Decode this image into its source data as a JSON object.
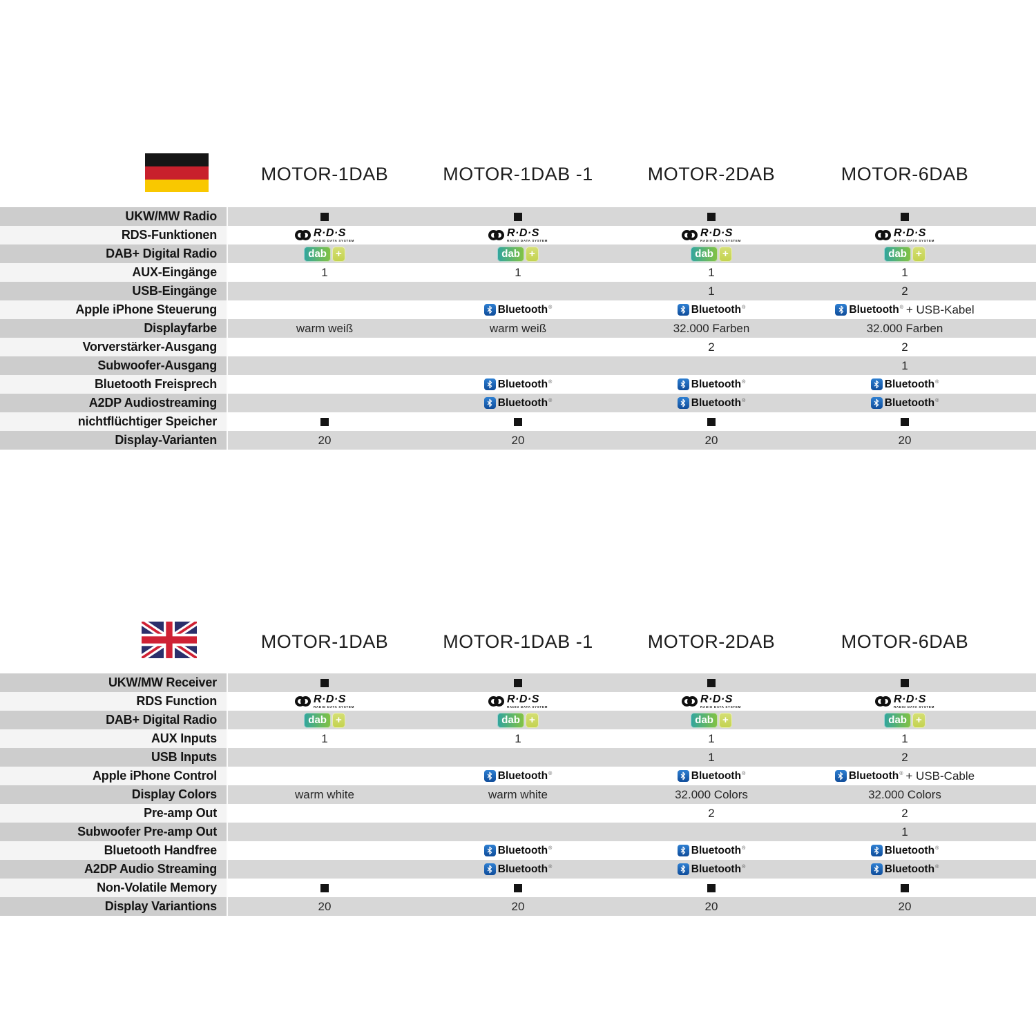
{
  "colors": {
    "row_stripe": "#d7d7d7",
    "bluetooth_blue_top": "#2e7fd2",
    "bluetooth_blue_bottom": "#0f4c9a",
    "dab_teal": "#31a49f",
    "dab_green": "#85c341",
    "dab_plus_bg": "#c3d24e",
    "marker_black": "#141414",
    "flag_de_black": "#161616",
    "flag_de_red": "#c8202c",
    "flag_de_gold": "#f9c800",
    "flag_uk_blue": "#2b2f6b",
    "flag_uk_red": "#cf2134"
  },
  "logos": {
    "rds": {
      "main": "R·D·S",
      "sub": "RADIO DATA SYSTEM"
    },
    "dab": {
      "text": "dab",
      "plus": "+"
    },
    "bluetooth": {
      "text": "Bluetooth",
      "reg": "®"
    }
  },
  "sections": [
    {
      "language": "german",
      "flag": "germany",
      "models": [
        "MOTOR-1DAB",
        "MOTOR-1DAB -1",
        "MOTOR-2DAB",
        "MOTOR-6DAB"
      ],
      "rows": [
        {
          "label": "UKW/MW Radio",
          "values": [
            {
              "type": "square"
            },
            {
              "type": "square"
            },
            {
              "type": "square"
            },
            {
              "type": "square"
            }
          ]
        },
        {
          "label": "RDS-Funktionen",
          "values": [
            {
              "type": "rds"
            },
            {
              "type": "rds"
            },
            {
              "type": "rds"
            },
            {
              "type": "rds"
            }
          ]
        },
        {
          "label": "DAB+ Digital Radio",
          "values": [
            {
              "type": "dab"
            },
            {
              "type": "dab"
            },
            {
              "type": "dab"
            },
            {
              "type": "dab"
            }
          ]
        },
        {
          "label": "AUX-Eingänge",
          "values": [
            {
              "type": "text",
              "text": "1"
            },
            {
              "type": "text",
              "text": "1"
            },
            {
              "type": "text",
              "text": "1"
            },
            {
              "type": "text",
              "text": "1"
            }
          ]
        },
        {
          "label": "USB-Eingänge",
          "values": [
            {
              "type": "empty"
            },
            {
              "type": "empty"
            },
            {
              "type": "text",
              "text": "1"
            },
            {
              "type": "text",
              "text": "2"
            }
          ]
        },
        {
          "label": "Apple iPhone Steuerung",
          "values": [
            {
              "type": "empty"
            },
            {
              "type": "bluetooth"
            },
            {
              "type": "bluetooth"
            },
            {
              "type": "bluetooth",
              "suffix": " + USB-Kabel"
            }
          ]
        },
        {
          "label": "Displayfarbe",
          "values": [
            {
              "type": "text",
              "text": "warm weiß"
            },
            {
              "type": "text",
              "text": "warm weiß"
            },
            {
              "type": "text",
              "text": "32.000 Farben"
            },
            {
              "type": "text",
              "text": "32.000 Farben"
            }
          ]
        },
        {
          "label": "Vorverstärker-Ausgang",
          "values": [
            {
              "type": "empty"
            },
            {
              "type": "empty"
            },
            {
              "type": "text",
              "text": "2"
            },
            {
              "type": "text",
              "text": "2"
            }
          ]
        },
        {
          "label": "Subwoofer-Ausgang",
          "values": [
            {
              "type": "empty"
            },
            {
              "type": "empty"
            },
            {
              "type": "empty"
            },
            {
              "type": "text",
              "text": "1"
            }
          ]
        },
        {
          "label": "Bluetooth Freisprech",
          "values": [
            {
              "type": "empty"
            },
            {
              "type": "bluetooth"
            },
            {
              "type": "bluetooth"
            },
            {
              "type": "bluetooth"
            }
          ]
        },
        {
          "label": "A2DP Audiostreaming",
          "values": [
            {
              "type": "empty"
            },
            {
              "type": "bluetooth"
            },
            {
              "type": "bluetooth"
            },
            {
              "type": "bluetooth"
            }
          ]
        },
        {
          "label": "nichtflüchtiger Speicher",
          "values": [
            {
              "type": "square"
            },
            {
              "type": "square"
            },
            {
              "type": "square"
            },
            {
              "type": "square"
            }
          ]
        },
        {
          "label": "Display-Varianten",
          "values": [
            {
              "type": "text",
              "text": "20"
            },
            {
              "type": "text",
              "text": "20"
            },
            {
              "type": "text",
              "text": "20"
            },
            {
              "type": "text",
              "text": "20"
            }
          ]
        }
      ]
    },
    {
      "language": "english",
      "flag": "uk",
      "models": [
        "MOTOR-1DAB",
        "MOTOR-1DAB -1",
        "MOTOR-2DAB",
        "MOTOR-6DAB"
      ],
      "rows": [
        {
          "label": "UKW/MW Receiver",
          "values": [
            {
              "type": "square"
            },
            {
              "type": "square"
            },
            {
              "type": "square"
            },
            {
              "type": "square"
            }
          ]
        },
        {
          "label": "RDS Function",
          "values": [
            {
              "type": "rds"
            },
            {
              "type": "rds"
            },
            {
              "type": "rds"
            },
            {
              "type": "rds"
            }
          ]
        },
        {
          "label": "DAB+ Digital Radio",
          "values": [
            {
              "type": "dab"
            },
            {
              "type": "dab"
            },
            {
              "type": "dab"
            },
            {
              "type": "dab"
            }
          ]
        },
        {
          "label": "AUX Inputs",
          "values": [
            {
              "type": "text",
              "text": "1"
            },
            {
              "type": "text",
              "text": "1"
            },
            {
              "type": "text",
              "text": "1"
            },
            {
              "type": "text",
              "text": "1"
            }
          ]
        },
        {
          "label": "USB Inputs",
          "values": [
            {
              "type": "empty"
            },
            {
              "type": "empty"
            },
            {
              "type": "text",
              "text": "1"
            },
            {
              "type": "text",
              "text": "2"
            }
          ]
        },
        {
          "label": "Apple iPhone Control",
          "values": [
            {
              "type": "empty"
            },
            {
              "type": "bluetooth"
            },
            {
              "type": "bluetooth"
            },
            {
              "type": "bluetooth",
              "suffix": " + USB-Cable"
            }
          ]
        },
        {
          "label": "Display Colors",
          "values": [
            {
              "type": "text",
              "text": "warm white"
            },
            {
              "type": "text",
              "text": "warm white"
            },
            {
              "type": "text",
              "text": "32.000 Colors"
            },
            {
              "type": "text",
              "text": "32.000 Colors"
            }
          ]
        },
        {
          "label": "Pre-amp Out",
          "values": [
            {
              "type": "empty"
            },
            {
              "type": "empty"
            },
            {
              "type": "text",
              "text": "2"
            },
            {
              "type": "text",
              "text": "2"
            }
          ]
        },
        {
          "label": "Subwoofer Pre-amp Out",
          "values": [
            {
              "type": "empty"
            },
            {
              "type": "empty"
            },
            {
              "type": "empty"
            },
            {
              "type": "text",
              "text": "1"
            }
          ]
        },
        {
          "label": "Bluetooth Handfree",
          "values": [
            {
              "type": "empty"
            },
            {
              "type": "bluetooth"
            },
            {
              "type": "bluetooth"
            },
            {
              "type": "bluetooth"
            }
          ]
        },
        {
          "label": "A2DP Audio Streaming",
          "values": [
            {
              "type": "empty"
            },
            {
              "type": "bluetooth"
            },
            {
              "type": "bluetooth"
            },
            {
              "type": "bluetooth"
            }
          ]
        },
        {
          "label": "Non-Volatile Memory",
          "values": [
            {
              "type": "square"
            },
            {
              "type": "square"
            },
            {
              "type": "square"
            },
            {
              "type": "square"
            }
          ]
        },
        {
          "label": "Display Variantions",
          "values": [
            {
              "type": "text",
              "text": "20"
            },
            {
              "type": "text",
              "text": "20"
            },
            {
              "type": "text",
              "text": "20"
            },
            {
              "type": "text",
              "text": "20"
            }
          ]
        }
      ]
    }
  ]
}
